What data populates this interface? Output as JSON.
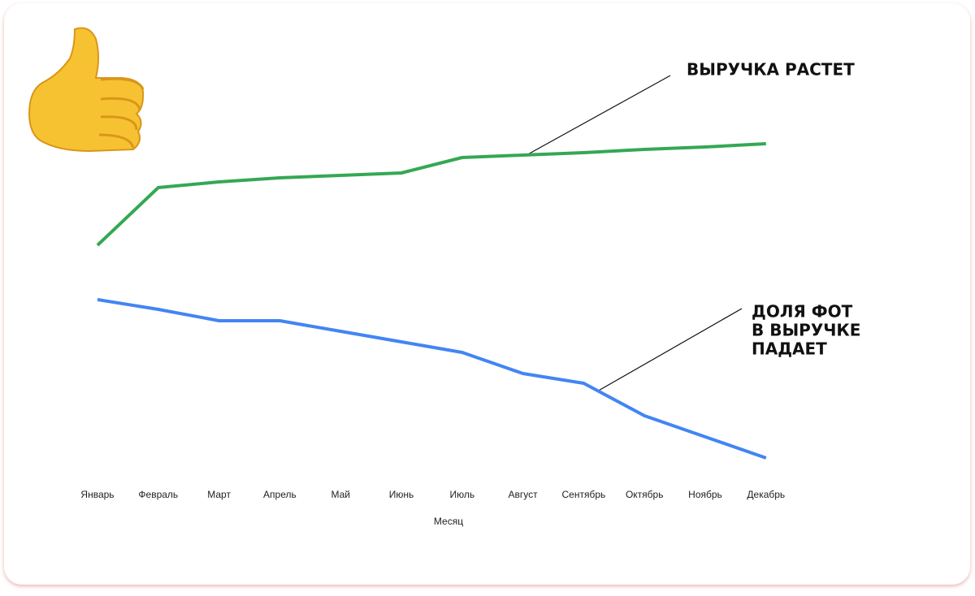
{
  "chart_data": {
    "type": "line",
    "categories": [
      "Январь",
      "Февраль",
      "Март",
      "Апрель",
      "Май",
      "Июнь",
      "Июль",
      "Август",
      "Сентябрь",
      "Октябрь",
      "Ноябрь",
      "Декабрь"
    ],
    "x_label": "Месяц",
    "ylim": [
      0,
      100
    ],
    "series": [
      {
        "color": "#34a853",
        "values": [
          59.6,
          73.8,
          75.2,
          76.2,
          76.8,
          77.4,
          81.2,
          81.8,
          82.4,
          83.2,
          83.8,
          84.6
        ]
      },
      {
        "color": "#4285f4",
        "values": [
          46.2,
          43.8,
          41,
          41,
          38.4,
          35.8,
          33.2,
          28,
          25.6,
          17.6,
          12.4,
          7.2
        ]
      }
    ],
    "annotations": [
      {
        "lines": [
          "ВЫРУЧКА РАСТЕТ"
        ]
      },
      {
        "lines": [
          "ДОЛЯ ФОТ",
          "В ВЫРУЧКЕ",
          "ПАДАЕТ"
        ]
      }
    ]
  }
}
